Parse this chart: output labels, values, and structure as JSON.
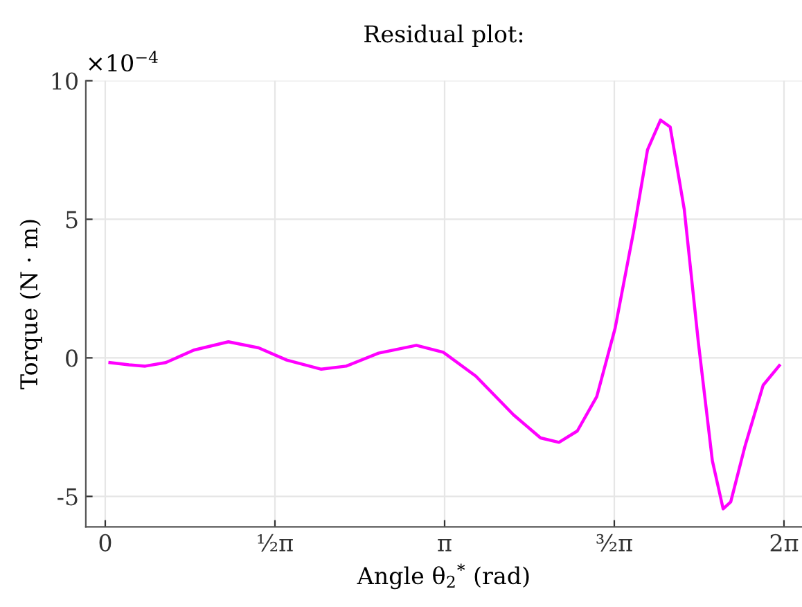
{
  "chart_data": {
    "type": "line",
    "title": "Residual plot:",
    "xlabel": "Angle θ$_{2}$$^{*}$ (rad)",
    "ylabel": "Torque (N · m)",
    "annotations": [
      "×10$^{−4}$"
    ],
    "x": [
      0.043,
      0.22,
      0.37,
      0.56,
      0.82,
      1.14,
      1.42,
      1.68,
      2.0,
      2.23,
      2.53,
      2.88,
      3.13,
      3.43,
      3.78,
      4.03,
      4.2,
      4.37,
      4.55,
      4.72,
      4.89,
      5.02,
      5.14,
      5.23,
      5.36,
      5.49,
      5.62,
      5.72,
      5.79,
      5.92,
      6.09,
      6.24
    ],
    "series": [
      {
        "color": "#ff00ff",
        "values": [
          -0.17,
          -0.25,
          -0.3,
          -0.17,
          0.28,
          0.58,
          0.36,
          -0.08,
          -0.41,
          -0.3,
          0.17,
          0.45,
          0.2,
          -0.66,
          -2.06,
          -2.89,
          -3.05,
          -2.64,
          -1.4,
          1.07,
          4.54,
          7.51,
          8.58,
          8.33,
          5.36,
          0.58,
          -3.71,
          -5.45,
          -5.2,
          -3.22,
          -0.99,
          -0.28
        ]
      }
    ],
    "xlim": [
      -0.18,
      6.45
    ],
    "ylim": [
      -6.1,
      10
    ],
    "xticks": [
      0,
      {
        "value": 1.5708,
        "label": "½π"
      },
      {
        "value": 3.1416,
        "label": "π"
      },
      {
        "value": 4.7124,
        "label": "³⁄₂π"
      },
      {
        "value": 6.2832,
        "label": "2π"
      }
    ],
    "yticks": [
      -5,
      0,
      5,
      10
    ],
    "grid": true,
    "marker": "none",
    "line_style": "solid"
  }
}
